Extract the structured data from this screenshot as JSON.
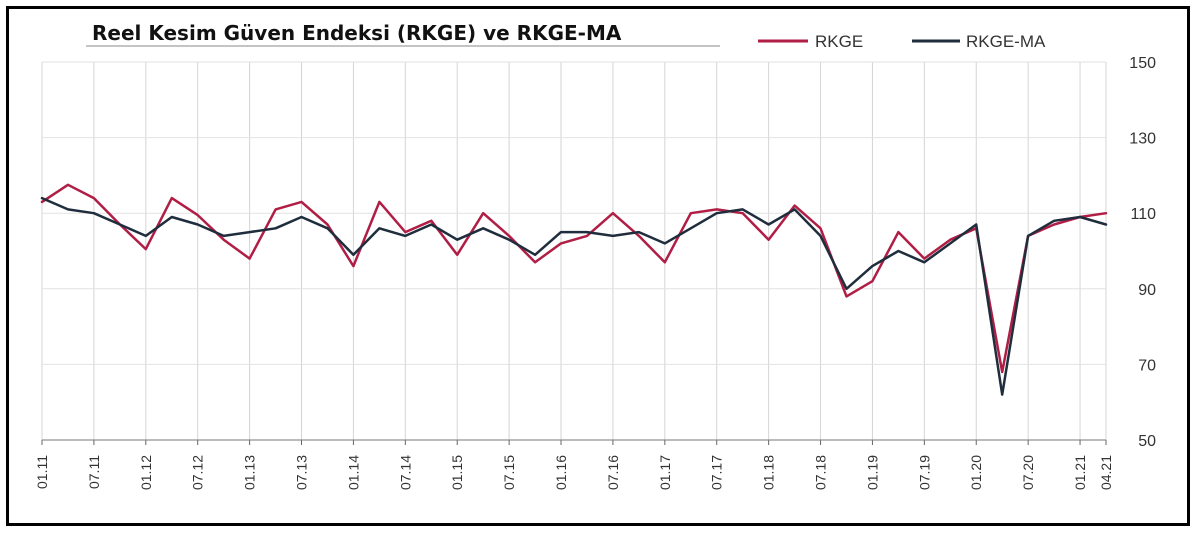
{
  "chart_data": {
    "type": "line",
    "title": "Reel Kesim Güven Endeksi (RKGE) ve RKGE-MA",
    "xlabel": "",
    "ylabel": "",
    "ylim": [
      50,
      150
    ],
    "yticks": [
      50,
      70,
      90,
      110,
      130,
      150
    ],
    "grid": true,
    "legend_position": "top-right",
    "x_ticks": [
      "01.11",
      "07.11",
      "01.12",
      "07.12",
      "01.13",
      "07.13",
      "01.14",
      "07.14",
      "01.15",
      "07.15",
      "01.16",
      "07.16",
      "01.17",
      "07.17",
      "01.18",
      "07.18",
      "01.19",
      "07.19",
      "01.20",
      "07.20",
      "01.21",
      "04.21"
    ],
    "series": [
      {
        "name": "RKGE",
        "color": "#b01e46",
        "points": [
          [
            "01.11",
            113
          ],
          [
            "04.11",
            117.5
          ],
          [
            "07.11",
            114
          ],
          [
            "10.11",
            107
          ],
          [
            "01.12",
            100.5
          ],
          [
            "04.12",
            114
          ],
          [
            "07.12",
            109.5
          ],
          [
            "10.12",
            103
          ],
          [
            "01.13",
            98
          ],
          [
            "04.13",
            111
          ],
          [
            "07.13",
            113
          ],
          [
            "10.13",
            107
          ],
          [
            "01.14",
            96
          ],
          [
            "04.14",
            113
          ],
          [
            "07.14",
            105
          ],
          [
            "10.14",
            108
          ],
          [
            "01.15",
            99
          ],
          [
            "04.15",
            110
          ],
          [
            "07.15",
            104
          ],
          [
            "10.15",
            97
          ],
          [
            "01.16",
            102
          ],
          [
            "04.16",
            104
          ],
          [
            "07.16",
            110
          ],
          [
            "10.16",
            104
          ],
          [
            "01.17",
            97
          ],
          [
            "04.17",
            110
          ],
          [
            "07.17",
            111
          ],
          [
            "10.17",
            110
          ],
          [
            "01.18",
            103
          ],
          [
            "04.18",
            112
          ],
          [
            "07.18",
            106
          ],
          [
            "10.18",
            88
          ],
          [
            "01.19",
            92
          ],
          [
            "04.19",
            105
          ],
          [
            "07.19",
            98
          ],
          [
            "10.19",
            103
          ],
          [
            "01.20",
            106
          ],
          [
            "04.20",
            68
          ],
          [
            "07.20",
            104
          ],
          [
            "10.20",
            107
          ],
          [
            "01.21",
            109
          ],
          [
            "04.21",
            110
          ]
        ]
      },
      {
        "name": "RKGE-MA",
        "color": "#1f2d3d",
        "points": [
          [
            "01.11",
            114
          ],
          [
            "04.11",
            111
          ],
          [
            "07.11",
            110
          ],
          [
            "10.11",
            107
          ],
          [
            "01.12",
            104
          ],
          [
            "04.12",
            109
          ],
          [
            "07.12",
            107
          ],
          [
            "10.12",
            104
          ],
          [
            "01.13",
            105
          ],
          [
            "04.13",
            106
          ],
          [
            "07.13",
            109
          ],
          [
            "10.13",
            106
          ],
          [
            "01.14",
            99
          ],
          [
            "04.14",
            106
          ],
          [
            "07.14",
            104
          ],
          [
            "10.14",
            107
          ],
          [
            "01.15",
            103
          ],
          [
            "04.15",
            106
          ],
          [
            "07.15",
            103
          ],
          [
            "10.15",
            99
          ],
          [
            "01.16",
            105
          ],
          [
            "04.16",
            105
          ],
          [
            "07.16",
            104
          ],
          [
            "10.16",
            105
          ],
          [
            "01.17",
            102
          ],
          [
            "04.17",
            106
          ],
          [
            "07.17",
            110
          ],
          [
            "10.17",
            111
          ],
          [
            "01.18",
            107
          ],
          [
            "04.18",
            111
          ],
          [
            "07.18",
            104
          ],
          [
            "10.18",
            90
          ],
          [
            "01.19",
            96
          ],
          [
            "04.19",
            100
          ],
          [
            "07.19",
            97
          ],
          [
            "10.19",
            102
          ],
          [
            "01.20",
            107
          ],
          [
            "04.20",
            62
          ],
          [
            "07.20",
            104
          ],
          [
            "10.20",
            108
          ],
          [
            "01.21",
            109
          ],
          [
            "04.21",
            107
          ]
        ]
      }
    ]
  }
}
